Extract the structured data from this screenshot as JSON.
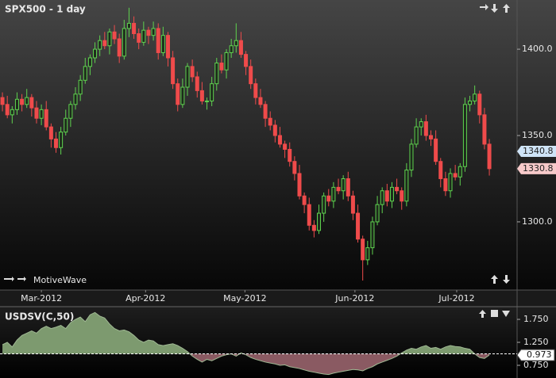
{
  "chart_data": [
    {
      "type": "candlestick",
      "title": "SPX500 - 1 day",
      "watermark": "MotiveWave",
      "up_color": "#5fd34f",
      "down_color": "#ef4b4b",
      "open": [
        1372,
        1368,
        1362,
        1365,
        1371,
        1368,
        1372,
        1366,
        1360,
        1365,
        1355,
        1348,
        1343,
        1352,
        1360,
        1368,
        1374,
        1382,
        1390,
        1395,
        1400,
        1405,
        1402,
        1410,
        1406,
        1396,
        1412,
        1415,
        1409,
        1404,
        1411,
        1408,
        1412,
        1398,
        1408,
        1395,
        1380,
        1368,
        1378,
        1390,
        1384,
        1376,
        1370,
        1370,
        1380,
        1392,
        1388,
        1398,
        1402,
        1405,
        1397,
        1390,
        1380,
        1372,
        1368,
        1360,
        1356,
        1350,
        1345,
        1342,
        1335,
        1328,
        1315,
        1310,
        1298,
        1295,
        1305,
        1315,
        1312,
        1320,
        1318,
        1325,
        1315,
        1305,
        1290,
        1278,
        1285,
        1300,
        1310,
        1318,
        1312,
        1320,
        1318,
        1312,
        1330,
        1345,
        1355,
        1358,
        1350,
        1348,
        1335,
        1325,
        1318,
        1328,
        1326,
        1332,
        1368,
        1370,
        1374,
        1362,
        1345
      ],
      "high": [
        1375,
        1373,
        1367,
        1375,
        1374,
        1377,
        1374,
        1370,
        1368,
        1370,
        1357,
        1352,
        1355,
        1365,
        1370,
        1378,
        1385,
        1395,
        1397,
        1404,
        1408,
        1410,
        1412,
        1414,
        1409,
        1417,
        1424,
        1419,
        1412,
        1416,
        1413,
        1416,
        1415,
        1413,
        1410,
        1399,
        1383,
        1383,
        1392,
        1394,
        1387,
        1381,
        1372,
        1384,
        1395,
        1397,
        1400,
        1406,
        1415,
        1410,
        1399,
        1394,
        1383,
        1377,
        1370,
        1364,
        1359,
        1355,
        1347,
        1346,
        1338,
        1333,
        1317,
        1314,
        1301,
        1310,
        1317,
        1319,
        1323,
        1325,
        1327,
        1329,
        1318,
        1310,
        1292,
        1289,
        1303,
        1315,
        1320,
        1322,
        1323,
        1325,
        1320,
        1334,
        1348,
        1360,
        1360,
        1362,
        1353,
        1353,
        1337,
        1329,
        1331,
        1333,
        1334,
        1372,
        1373,
        1379,
        1376,
        1366,
        1348
      ],
      "low": [
        1364,
        1360,
        1357,
        1362,
        1364,
        1366,
        1361,
        1357,
        1356,
        1353,
        1343,
        1340,
        1339,
        1350,
        1355,
        1365,
        1370,
        1380,
        1385,
        1392,
        1396,
        1400,
        1397,
        1403,
        1392,
        1394,
        1407,
        1406,
        1400,
        1402,
        1403,
        1405,
        1394,
        1396,
        1390,
        1377,
        1364,
        1366,
        1373,
        1381,
        1372,
        1368,
        1365,
        1367,
        1376,
        1386,
        1383,
        1395,
        1398,
        1395,
        1385,
        1377,
        1368,
        1366,
        1355,
        1353,
        1346,
        1343,
        1337,
        1332,
        1324,
        1313,
        1305,
        1295,
        1291,
        1293,
        1300,
        1309,
        1308,
        1316,
        1313,
        1312,
        1301,
        1288,
        1266,
        1275,
        1281,
        1298,
        1305,
        1309,
        1308,
        1316,
        1307,
        1309,
        1326,
        1343,
        1350,
        1347,
        1344,
        1333,
        1320,
        1315,
        1314,
        1324,
        1321,
        1329,
        1364,
        1368,
        1357,
        1342,
        1326.8
      ],
      "close": [
        1368,
        1362,
        1365,
        1371,
        1368,
        1372,
        1366,
        1360,
        1365,
        1355,
        1348,
        1343,
        1352,
        1360,
        1368,
        1374,
        1382,
        1390,
        1395,
        1400,
        1405,
        1402,
        1410,
        1406,
        1396,
        1412,
        1415,
        1409,
        1404,
        1411,
        1408,
        1412,
        1398,
        1408,
        1395,
        1380,
        1368,
        1378,
        1390,
        1384,
        1376,
        1370,
        1370,
        1380,
        1392,
        1388,
        1398,
        1402,
        1405,
        1397,
        1390,
        1380,
        1372,
        1368,
        1360,
        1356,
        1350,
        1345,
        1342,
        1335,
        1328,
        1315,
        1310,
        1298,
        1295,
        1305,
        1315,
        1312,
        1320,
        1318,
        1325,
        1315,
        1305,
        1290,
        1278,
        1285,
        1300,
        1310,
        1318,
        1312,
        1320,
        1318,
        1312,
        1330,
        1345,
        1355,
        1358,
        1350,
        1348,
        1335,
        1325,
        1318,
        1328,
        1326,
        1332,
        1368,
        1370,
        1374,
        1362,
        1345,
        1330.8
      ],
      "xlim": [
        -0.5,
        105.7
      ],
      "xticks": [
        {
          "value": 8,
          "label": "Mar-2012"
        },
        {
          "value": 29.4,
          "label": "Apr-2012"
        },
        {
          "value": 49.8,
          "label": "May-2012"
        },
        {
          "value": 72.4,
          "label": "Jun-2012"
        },
        {
          "value": 93.3,
          "label": "Jul-2012"
        }
      ],
      "ylim": [
        1260.5,
        1428.5
      ],
      "yticks": [
        {
          "value": 1300,
          "label": "1300.0"
        },
        {
          "value": 1350,
          "label": "1350.0"
        },
        {
          "value": 1400,
          "label": "1400.0"
        }
      ],
      "price_markers": [
        {
          "value": 1340.8,
          "color": "#cfe4f7"
        },
        {
          "value": 1330.8,
          "color": "#f7caca"
        }
      ]
    },
    {
      "type": "area",
      "title": "USDSV(C,50)",
      "values": [
        1.2,
        1.25,
        1.15,
        1.3,
        1.4,
        1.45,
        1.5,
        1.45,
        1.55,
        1.6,
        1.55,
        1.58,
        1.62,
        1.55,
        1.68,
        1.75,
        1.8,
        1.7,
        1.85,
        1.9,
        1.82,
        1.78,
        1.65,
        1.55,
        1.5,
        1.52,
        1.48,
        1.4,
        1.3,
        1.25,
        1.3,
        1.28,
        1.2,
        1.18,
        1.2,
        1.22,
        1.18,
        1.12,
        1.05,
        0.95,
        0.88,
        0.82,
        0.88,
        0.85,
        0.9,
        0.95,
        0.98,
        1.0,
        0.95,
        1.02,
        0.98,
        0.92,
        0.88,
        0.85,
        0.82,
        0.8,
        0.78,
        0.75,
        0.76,
        0.72,
        0.7,
        0.68,
        0.65,
        0.62,
        0.6,
        0.58,
        0.56,
        0.55,
        0.58,
        0.6,
        0.62,
        0.64,
        0.66,
        0.65,
        0.63,
        0.68,
        0.72,
        0.78,
        0.82,
        0.86,
        0.9,
        0.95,
        1.02,
        1.08,
        1.12,
        1.1,
        1.15,
        1.18,
        1.12,
        1.14,
        1.1,
        1.15,
        1.18,
        1.16,
        1.15,
        1.12,
        1.1,
        1.0,
        0.92,
        0.9,
        0.973
      ],
      "baseline": 1,
      "above_color": "#7d9a6f",
      "below_color": "#8a5a62",
      "ylim": [
        0.474,
        2.009
      ],
      "yticks": [
        {
          "value": 0.75,
          "label": "0.750"
        },
        {
          "value": 1.25,
          "label": "1.250"
        },
        {
          "value": 1.75,
          "label": "1.750"
        }
      ],
      "current": 0.973
    }
  ]
}
